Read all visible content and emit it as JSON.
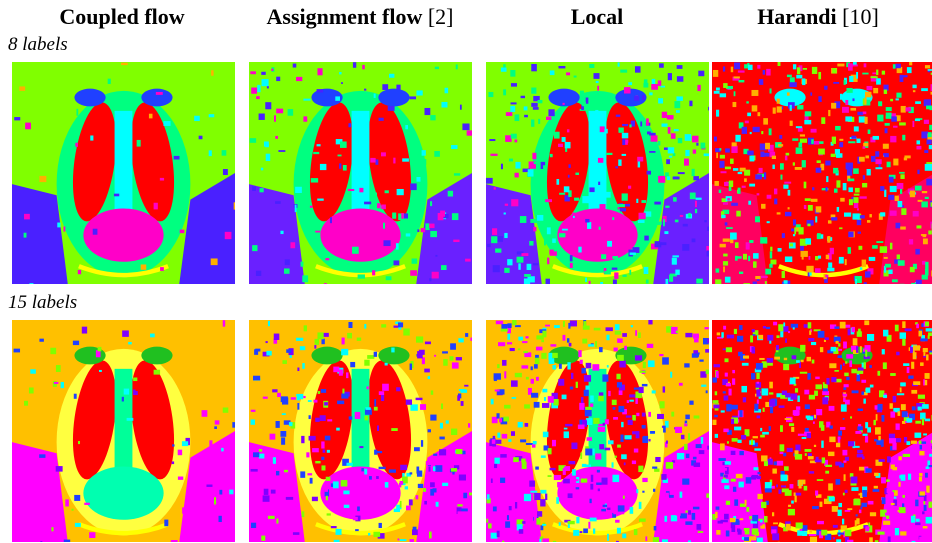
{
  "columns": [
    {
      "name": "Coupled flow"
    },
    {
      "name": "Assignment flow",
      "ref": "[2]"
    },
    {
      "name": "Local"
    },
    {
      "name": "Harandi",
      "ref": "[10]"
    }
  ],
  "rows": [
    {
      "label": "8 labels"
    },
    {
      "label": "15 labels"
    }
  ]
}
